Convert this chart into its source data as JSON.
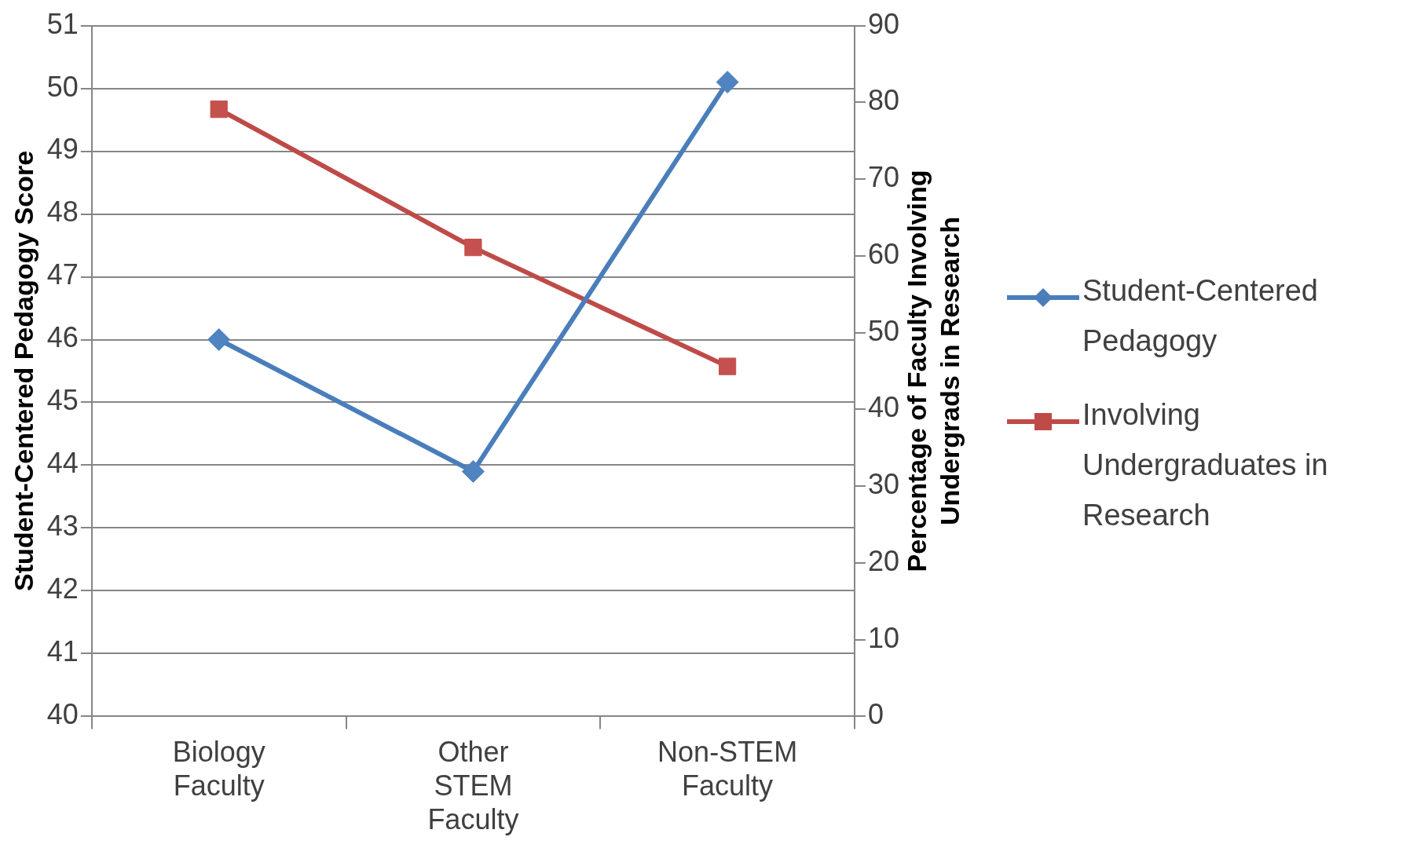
{
  "chart_data": {
    "type": "line",
    "categories": [
      "Biology Faculty",
      "Other STEM Faculty",
      "Non-STEM Faculty"
    ],
    "series": [
      {
        "name": "Student-Centered Pedagogy",
        "color": "#4a7ebb",
        "marker": "diamond",
        "values": [
          46.0,
          43.9,
          50.1
        ]
      },
      {
        "name": "Involving Undergraduates in Research",
        "color": "#be4b48",
        "marker": "square",
        "axis": "y2",
        "values": [
          79.1,
          61.1,
          45.6
        ]
      }
    ],
    "ylabel": "Student-Centered Pedagogy Score",
    "y2label": "Percentage of Faculty Involving Undergrads in Research",
    "ylim": [
      40,
      51
    ],
    "yticks": [
      40,
      41,
      42,
      43,
      44,
      45,
      46,
      47,
      48,
      49,
      50,
      51
    ],
    "y2lim": [
      0,
      90
    ],
    "y2ticks": [
      0,
      10,
      20,
      30,
      40,
      50,
      60,
      70,
      80,
      90
    ],
    "grid": "y",
    "legend": "right"
  }
}
